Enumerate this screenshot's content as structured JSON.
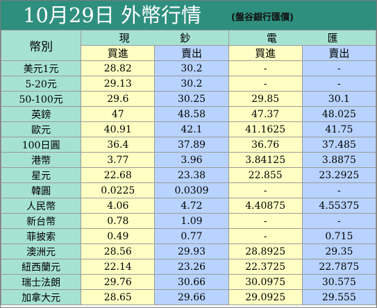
{
  "title": {
    "main": "10月29日 外幣行情",
    "source": "(盤谷銀行匯價)"
  },
  "header": {
    "currency_col": "幣別",
    "cash_group": [
      "現",
      "鈔"
    ],
    "wire_group": [
      "電",
      "匯"
    ],
    "buy": "買進",
    "sell": "賣出"
  },
  "rows": [
    {
      "name": "美元1元",
      "cash_buy": "28.82",
      "cash_sell": "30.2",
      "wire_buy": "-",
      "wire_sell": "-"
    },
    {
      "name": "5-20元",
      "cash_buy": "29.13",
      "cash_sell": "30.2",
      "wire_buy": "-",
      "wire_sell": "-"
    },
    {
      "name": "50-100元",
      "cash_buy": "29.6",
      "cash_sell": "30.25",
      "wire_buy": "29.85",
      "wire_sell": "30.1"
    },
    {
      "name": "英鎊",
      "cash_buy": "47",
      "cash_sell": "48.58",
      "wire_buy": "47.37",
      "wire_sell": "48.025"
    },
    {
      "name": "歐元",
      "cash_buy": "40.91",
      "cash_sell": "42.1",
      "wire_buy": "41.1625",
      "wire_sell": "41.75"
    },
    {
      "name": "100日圓",
      "cash_buy": "36.4",
      "cash_sell": "37.89",
      "wire_buy": "36.76",
      "wire_sell": "37.485"
    },
    {
      "name": "港幣",
      "cash_buy": "3.77",
      "cash_sell": "3.96",
      "wire_buy": "3.84125",
      "wire_sell": "3.8875"
    },
    {
      "name": "星元",
      "cash_buy": "22.68",
      "cash_sell": "23.38",
      "wire_buy": "22.855",
      "wire_sell": "23.2925"
    },
    {
      "name": "韓圓",
      "cash_buy": "0.0225",
      "cash_sell": "0.0309",
      "wire_buy": "-",
      "wire_sell": "-"
    },
    {
      "name": "人民幣",
      "cash_buy": "4.06",
      "cash_sell": "4.72",
      "wire_buy": "4.40875",
      "wire_sell": "4.55375"
    },
    {
      "name": "新台幣",
      "cash_buy": "0.78",
      "cash_sell": "1.09",
      "wire_buy": "-",
      "wire_sell": "-"
    },
    {
      "name": "菲披索",
      "cash_buy": "0.49",
      "cash_sell": "0.77",
      "wire_buy": "-",
      "wire_sell": "0.715"
    },
    {
      "name": "澳洲元",
      "cash_buy": "28.56",
      "cash_sell": "29.93",
      "wire_buy": "28.8925",
      "wire_sell": "29.35"
    },
    {
      "name": "紐西蘭元",
      "cash_buy": "22.14",
      "cash_sell": "23.26",
      "wire_buy": "22.3725",
      "wire_sell": "22.7875"
    },
    {
      "name": "瑞士法朗",
      "cash_buy": "29.76",
      "cash_sell": "30.66",
      "wire_buy": "30.0975",
      "wire_sell": "30.575"
    },
    {
      "name": "加拿大元",
      "cash_buy": "28.65",
      "cash_sell": "29.66",
      "wire_buy": "29.0925",
      "wire_sell": "29.555"
    }
  ],
  "colors": {
    "title_bg": "#2f8f7f",
    "name_bg": "#a6e2d2",
    "buy_bg": "#ffffc4",
    "sell_bg": "#b8d3ff"
  }
}
